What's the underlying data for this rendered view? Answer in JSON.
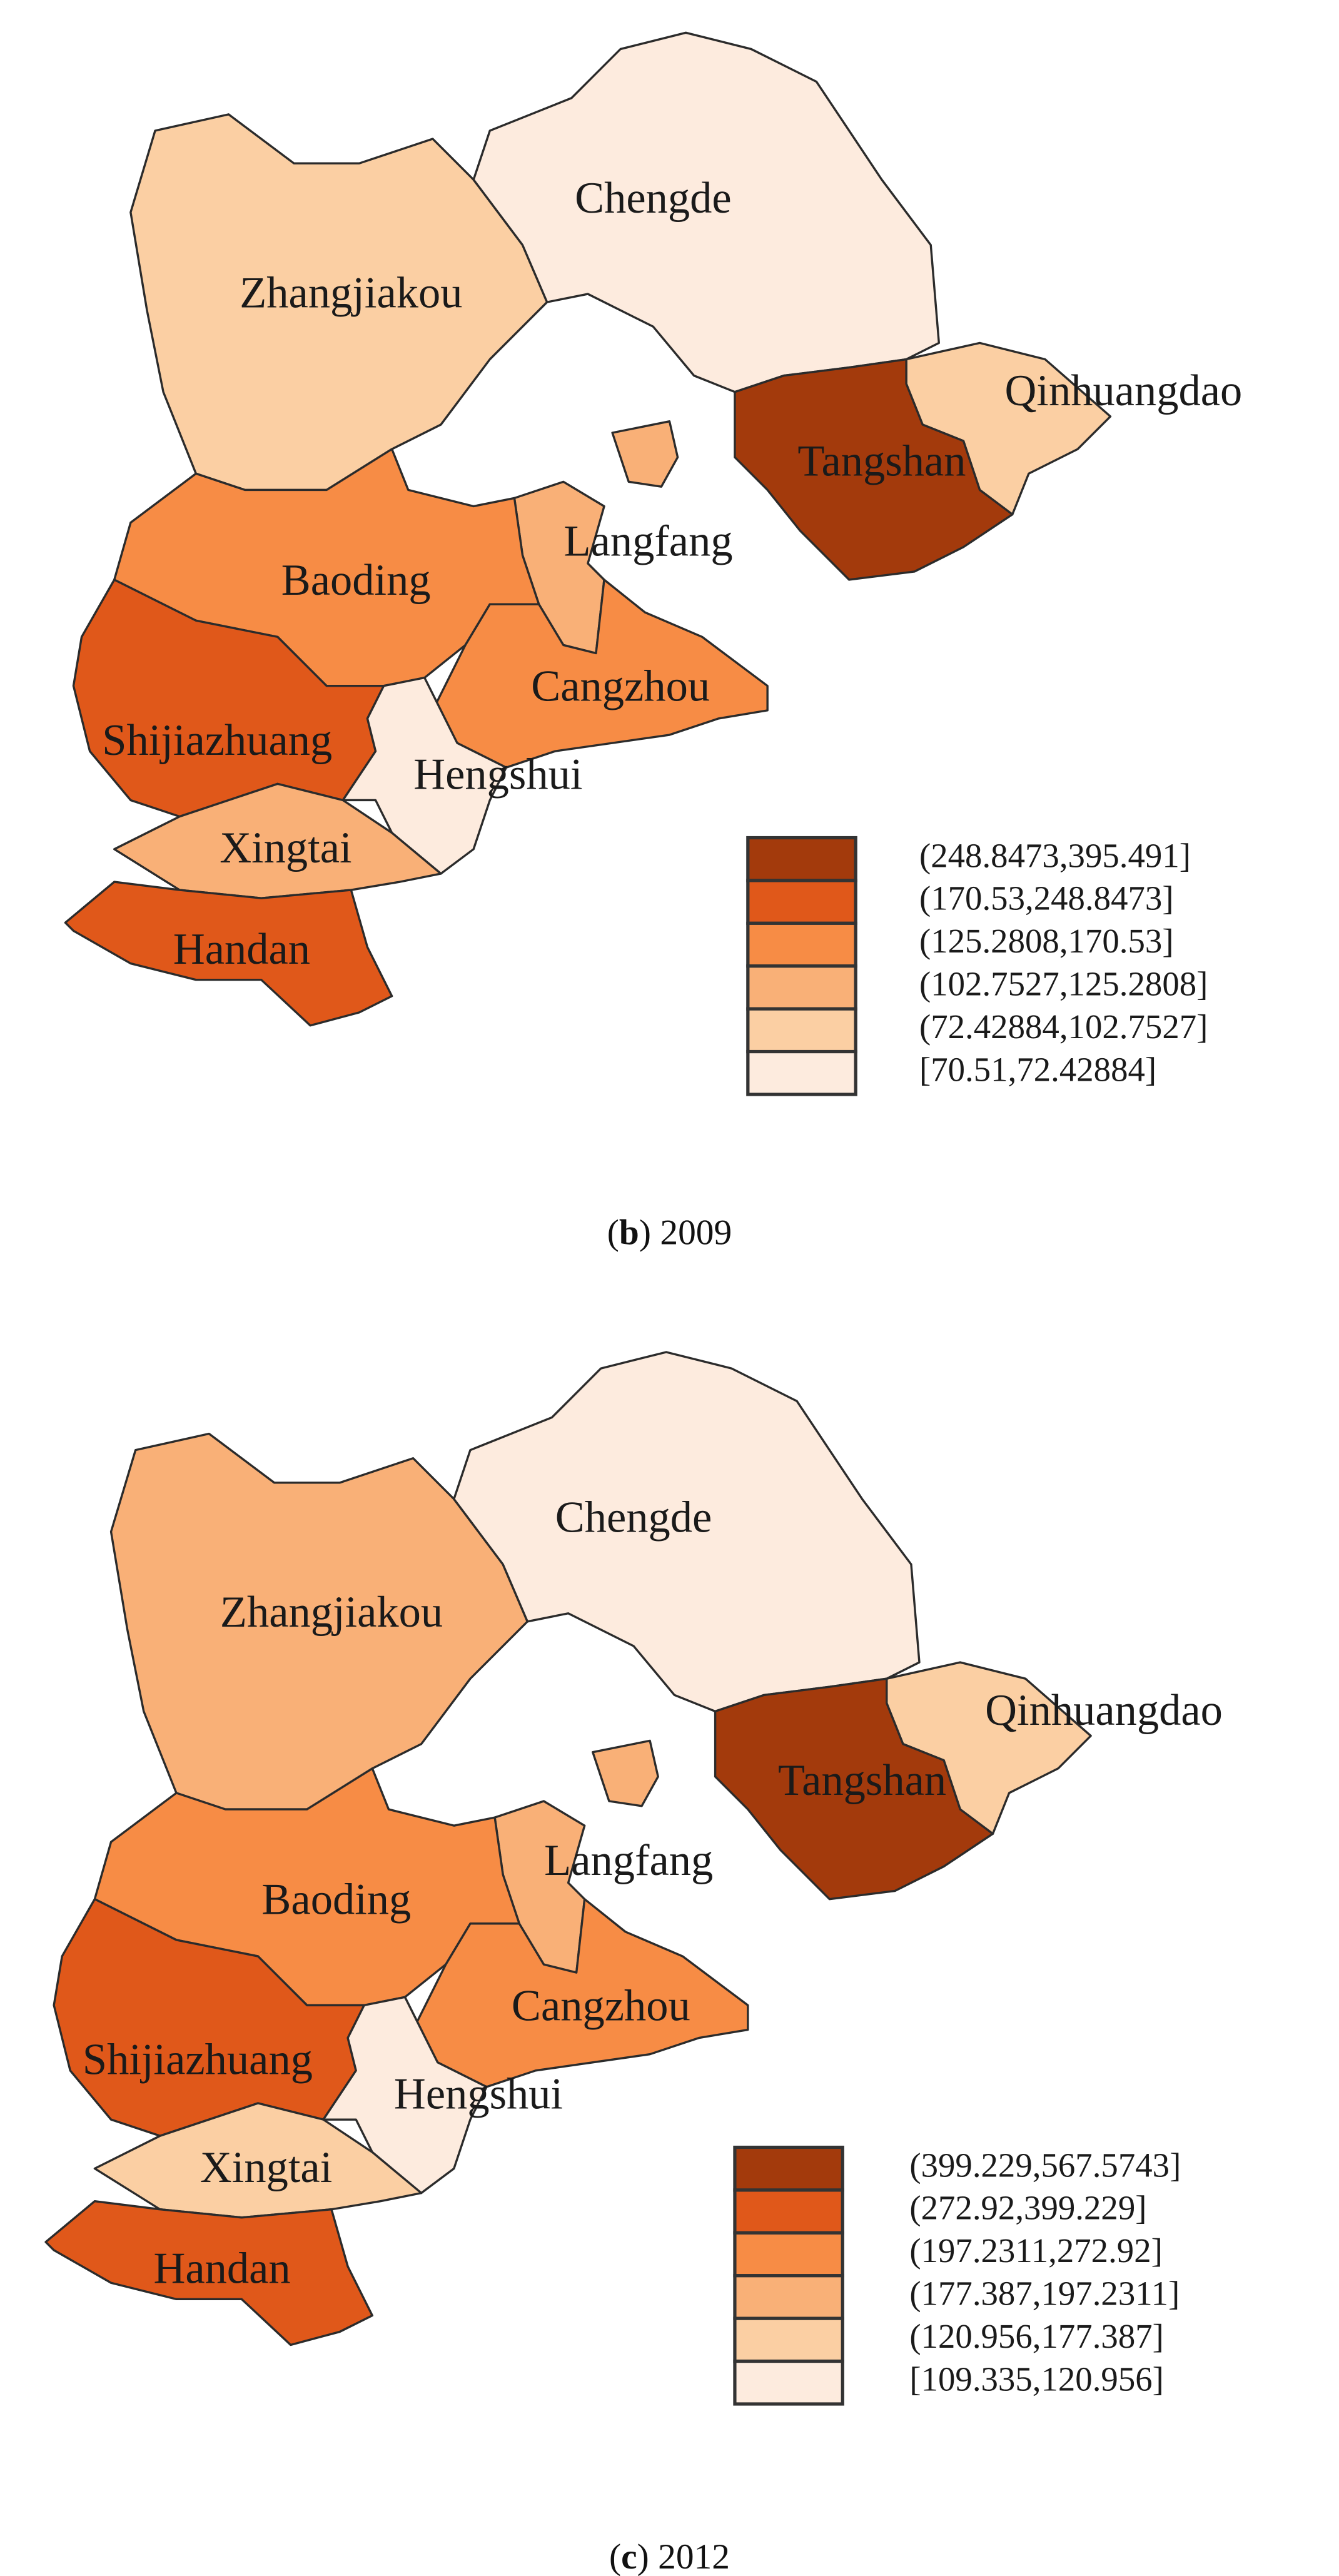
{
  "maps": [
    {
      "caption": {
        "open": "(",
        "letter": "b",
        "rest": ") 2009"
      },
      "legend": [
        {
          "label": "(248.8473,395.491]",
          "color": "#a33a0c"
        },
        {
          "label": "(170.53,248.8473]",
          "color": "#e0581a"
        },
        {
          "label": "(125.2808,170.53]",
          "color": "#f78c45"
        },
        {
          "label": "(102.7527,125.2808]",
          "color": "#f9b077"
        },
        {
          "label": "(72.42884,102.7527]",
          "color": "#fbcfa3"
        },
        {
          "label": "[70.51,72.42884]",
          "color": "#fdebde"
        }
      ],
      "regions": [
        {
          "name": "Zhangjiakou",
          "level": 4
        },
        {
          "name": "Chengde",
          "level": 5
        },
        {
          "name": "Qinhuangdao",
          "level": 4
        },
        {
          "name": "Tangshan",
          "level": 0
        },
        {
          "name": "Langfang",
          "level": 3
        },
        {
          "name": "Baoding",
          "level": 2
        },
        {
          "name": "Shijiazhuang",
          "level": 1
        },
        {
          "name": "Cangzhou",
          "level": 2
        },
        {
          "name": "Hengshui",
          "level": 5
        },
        {
          "name": "Xingtai",
          "level": 3
        },
        {
          "name": "Handan",
          "level": 1
        }
      ]
    },
    {
      "caption": {
        "open": "(",
        "letter": "c",
        "rest": ") 2012"
      },
      "legend": [
        {
          "label": "(399.229,567.5743]",
          "color": "#a33a0c"
        },
        {
          "label": "(272.92,399.229]",
          "color": "#e0581a"
        },
        {
          "label": "(197.2311,272.92]",
          "color": "#f78c45"
        },
        {
          "label": "(177.387,197.2311]",
          "color": "#f9b077"
        },
        {
          "label": "(120.956,177.387]",
          "color": "#fbcfa3"
        },
        {
          "label": "[109.335,120.956]",
          "color": "#fdebde"
        }
      ],
      "regions": [
        {
          "name": "Zhangjiakou",
          "level": 3
        },
        {
          "name": "Chengde",
          "level": 5
        },
        {
          "name": "Qinhuangdao",
          "level": 4
        },
        {
          "name": "Tangshan",
          "level": 0
        },
        {
          "name": "Langfang",
          "level": 3
        },
        {
          "name": "Baoding",
          "level": 2
        },
        {
          "name": "Shijiazhuang",
          "level": 1
        },
        {
          "name": "Cangzhou",
          "level": 2
        },
        {
          "name": "Hengshui",
          "level": 5
        },
        {
          "name": "Xingtai",
          "level": 4
        },
        {
          "name": "Handan",
          "level": 1
        }
      ]
    }
  ]
}
